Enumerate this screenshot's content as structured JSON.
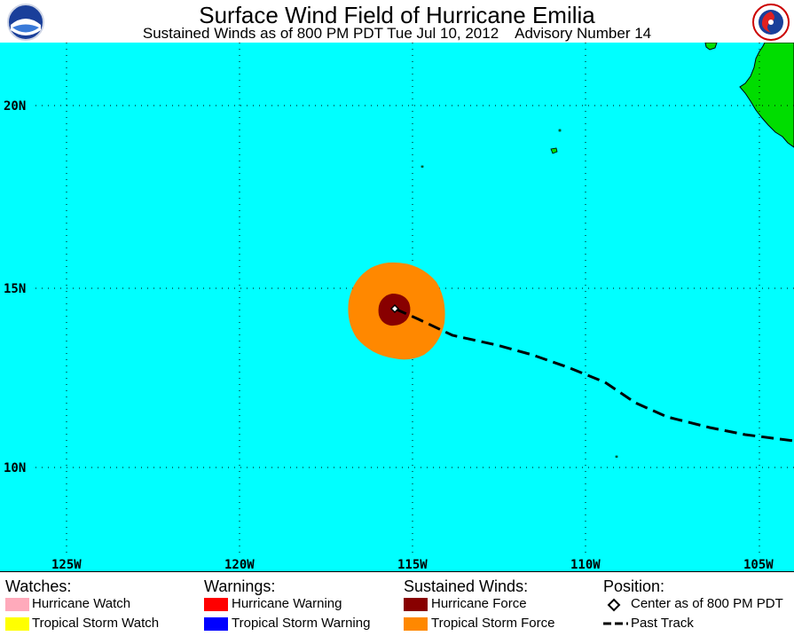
{
  "title": "Surface Wind Field of Hurricane Emilia",
  "subtitle": "Sustained Winds as of 800 PM PDT Tue Jul 10, 2012    Advisory Number 14",
  "map": {
    "ocean_color": "#00ffff",
    "land_color": "#00dd00",
    "lat_labels": [
      "20N",
      "15N",
      "10N"
    ],
    "lon_labels": [
      "125W",
      "120W",
      "115W",
      "110W",
      "105W"
    ]
  },
  "legend": {
    "watches": {
      "heading": "Watches:",
      "items": [
        {
          "label": "Hurricane Watch",
          "color": "#ffaabb"
        },
        {
          "label": "Tropical Storm Watch",
          "color": "#ffff00"
        }
      ]
    },
    "warnings": {
      "heading": "Warnings:",
      "items": [
        {
          "label": "Hurricane Warning",
          "color": "#ff0000"
        },
        {
          "label": "Tropical Storm Warning",
          "color": "#0000ff"
        }
      ]
    },
    "winds": {
      "heading": "Sustained Winds:",
      "items": [
        {
          "label": "Hurricane Force",
          "color": "#880000"
        },
        {
          "label": "Tropical Storm Force",
          "color": "#ff8800"
        }
      ]
    },
    "position": {
      "heading": "Position:",
      "center_label": "Center as of 800 PM PDT",
      "track_label": "Past Track"
    }
  }
}
